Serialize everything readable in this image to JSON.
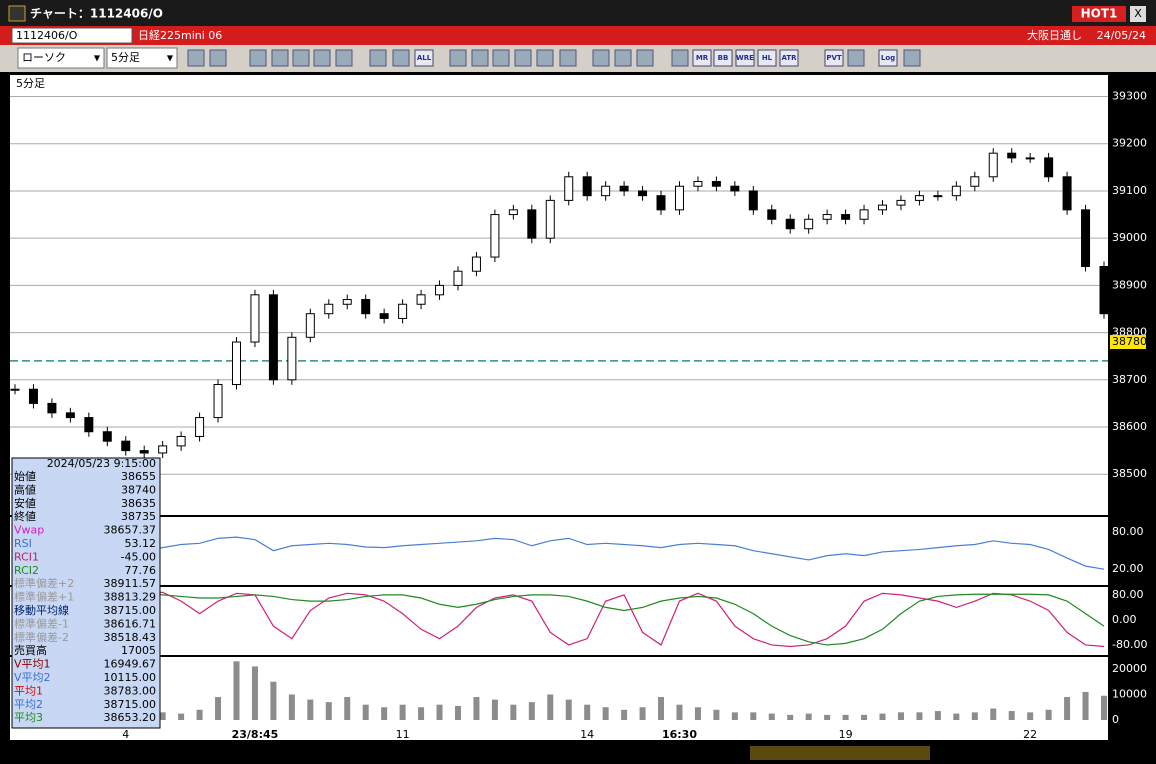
{
  "window": {
    "title": "チャート：1112406/O",
    "badge": "HOT1",
    "close": "X"
  },
  "header": {
    "symbol": "1112406/O",
    "name": "日経225mini 06",
    "market": "大阪日通し",
    "date": "24/05/24"
  },
  "toolbar": {
    "chart_style": "ローソク",
    "interval": "5分足",
    "buttons": [
      "ALL",
      "MR",
      "BB",
      "WRE",
      "HL",
      "ATR",
      "PVT",
      "Log"
    ]
  },
  "chart_data": [
    {
      "type": "candlestick",
      "label": "5分足",
      "categories": [
        null,
        null,
        null,
        null,
        null,
        null,
        "4",
        null,
        null,
        null,
        null,
        null,
        null,
        "23/8:45",
        null,
        null,
        null,
        null,
        null,
        null,
        null,
        "11",
        null,
        null,
        null,
        null,
        null,
        null,
        null,
        null,
        null,
        "14",
        null,
        null,
        null,
        null,
        "16:30",
        null,
        null,
        null,
        null,
        null,
        null,
        null,
        null,
        "19",
        null,
        null,
        null,
        null,
        null,
        null,
        null,
        null,
        null,
        "22",
        null,
        null,
        null,
        null
      ],
      "values": [
        38680,
        38650,
        38630,
        38620,
        38590,
        38570,
        38550,
        38545,
        38560,
        38580,
        38620,
        38690,
        38780,
        38880,
        38700,
        38790,
        38840,
        38860,
        38870,
        38840,
        38830,
        38860,
        38880,
        38900,
        38930,
        38960,
        39050,
        39060,
        39000,
        39080,
        39130,
        39090,
        39110,
        39100,
        39090,
        39060,
        39110,
        39120,
        39110,
        39100,
        39060,
        39040,
        39020,
        39040,
        39050,
        39040,
        39060,
        39070,
        39080,
        39090,
        39090,
        39110,
        39130,
        39180,
        39170,
        39170,
        39130,
        39060,
        38940,
        38840
      ],
      "ylim": [
        38420,
        39335
      ],
      "yticks": [
        39300,
        39200,
        39100,
        39000,
        38900,
        38800,
        38700,
        38600,
        38500
      ],
      "last_price": 38780,
      "ref_line": 38740,
      "ref_color": "#2e8b8b"
    },
    {
      "type": "line",
      "name": "RSI",
      "values": [
        45,
        42,
        40,
        38,
        40,
        42,
        45,
        50,
        55,
        60,
        62,
        70,
        72,
        68,
        50,
        58,
        60,
        62,
        60,
        56,
        55,
        58,
        60,
        62,
        64,
        66,
        70,
        68,
        58,
        66,
        70,
        60,
        62,
        60,
        58,
        55,
        60,
        62,
        60,
        58,
        50,
        45,
        40,
        35,
        42,
        45,
        42,
        48,
        50,
        52,
        55,
        58,
        60,
        66,
        62,
        60,
        52,
        38,
        25,
        20
      ],
      "color": "#4a7fd4",
      "ylim": [
        -4,
        103
      ],
      "yticks": [
        {
          "value": 80,
          "label": "80.00"
        },
        {
          "value": 20,
          "label": "20.00"
        }
      ]
    },
    {
      "type": "line",
      "series": [
        {
          "name": "RCI1",
          "color": "#d0207a",
          "values": [
            -40,
            -70,
            -85,
            -60,
            0,
            60,
            85,
            90,
            88,
            60,
            20,
            60,
            85,
            80,
            -20,
            -60,
            30,
            70,
            85,
            80,
            60,
            20,
            -30,
            -60,
            -20,
            40,
            70,
            80,
            60,
            -40,
            -80,
            -60,
            60,
            80,
            -40,
            -80,
            60,
            85,
            60,
            -20,
            -60,
            -80,
            -85,
            -80,
            -60,
            -20,
            60,
            85,
            80,
            70,
            60,
            40,
            60,
            85,
            80,
            60,
            30,
            -40,
            -80,
            -85
          ]
        },
        {
          "name": "RCI2",
          "color": "#1f8a1f",
          "values": [
            -30,
            -10,
            20,
            50,
            70,
            80,
            85,
            85,
            80,
            75,
            70,
            70,
            75,
            80,
            75,
            65,
            60,
            60,
            65,
            75,
            80,
            80,
            70,
            50,
            40,
            50,
            65,
            75,
            80,
            80,
            75,
            60,
            40,
            30,
            40,
            60,
            70,
            75,
            70,
            50,
            20,
            -20,
            -50,
            -70,
            -80,
            -75,
            -60,
            -30,
            20,
            60,
            75,
            80,
            82,
            82,
            82,
            82,
            80,
            60,
            20,
            -20
          ]
        }
      ],
      "ylim": [
        -109,
        102
      ],
      "yticks": [
        {
          "value": 80,
          "label": "80.00"
        },
        {
          "value": 0,
          "label": "0.00"
        },
        {
          "value": -80,
          "label": "-80.00"
        }
      ]
    },
    {
      "type": "bar",
      "name": "売買高",
      "values": [
        3000,
        2500,
        2000,
        1500,
        2000,
        1800,
        2500,
        2000,
        3000,
        2500,
        4000,
        9000,
        23000,
        21000,
        15000,
        10000,
        8000,
        7000,
        9000,
        6000,
        5000,
        6000,
        5000,
        6000,
        5500,
        9000,
        8000,
        6000,
        7000,
        10000,
        8000,
        6000,
        5000,
        4000,
        5000,
        9000,
        6000,
        5000,
        4000,
        3000,
        3000,
        2500,
        2000,
        2500,
        2000,
        2000,
        2000,
        2500,
        3000,
        3000,
        3500,
        2500,
        3000,
        4500,
        3500,
        3000,
        4000,
        9000,
        11000,
        9500
      ],
      "color": "#8c8c8c",
      "ylim": [
        -1570,
        24300
      ],
      "yticks": [
        20000,
        10000,
        0
      ]
    }
  ],
  "info": {
    "datetime": "2024/05/23 9:15:00",
    "rows": [
      {
        "label": "始値",
        "value": "38655",
        "color": "#000"
      },
      {
        "label": "高値",
        "value": "38740",
        "color": "#000"
      },
      {
        "label": "安値",
        "value": "38635",
        "color": "#000"
      },
      {
        "label": "終値",
        "value": "38735",
        "color": "#000"
      },
      {
        "label": "Vwap",
        "value": "38657.37",
        "color": "#d020c0"
      },
      {
        "label": "RSI",
        "value": "53.12",
        "color": "#3a6fd0"
      },
      {
        "label": "RCI1",
        "value": "-45.00",
        "color": "#c0206a"
      },
      {
        "label": "RCI2",
        "value": "77.76",
        "color": "#1f8a1f"
      },
      {
        "label": "標準偏差+2",
        "value": "38911.57",
        "color": "#999"
      },
      {
        "label": "標準偏差+1",
        "value": "38813.29",
        "color": "#999"
      },
      {
        "label": "移動平均線",
        "value": "38715.00",
        "color": "#00206a"
      },
      {
        "label": "標準偏差-1",
        "value": "38616.71",
        "color": "#999"
      },
      {
        "label": "標準偏差-2",
        "value": "38518.43",
        "color": "#999"
      },
      {
        "label": "売買高",
        "value": "17005",
        "color": "#000"
      },
      {
        "label": "V平均1",
        "value": "16949.67",
        "color": "#8b0000"
      },
      {
        "label": "V平均2",
        "value": "10115.00",
        "color": "#3a6fd0"
      },
      {
        "label": "平均1",
        "value": "38783.00",
        "color": "#d01010"
      },
      {
        "label": "平均2",
        "value": "38715.00",
        "color": "#3a6fd0"
      },
      {
        "label": "平均3",
        "value": "38653.20",
        "color": "#1f8a1f"
      }
    ]
  }
}
